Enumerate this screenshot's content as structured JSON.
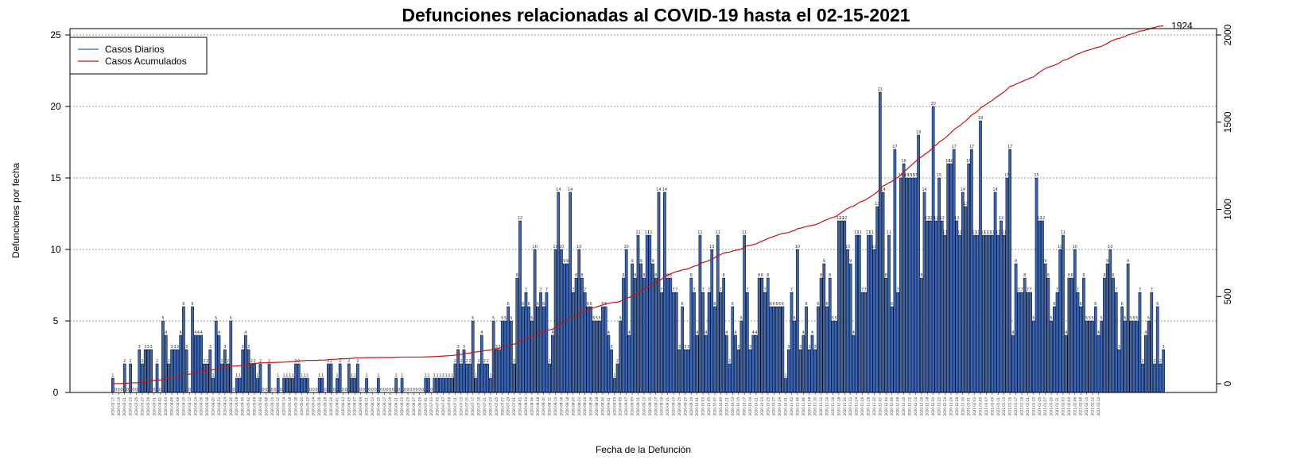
{
  "chart_data": {
    "type": "bar",
    "title": "Defunciones relacionadas al COVID-19 hasta el 02-15-2021",
    "xlabel": "Fecha de la Defunción",
    "ylabel": "Defunciones por fecha",
    "ylim": [
      0,
      25
    ],
    "y2lim": [
      -50,
      2000
    ],
    "yticks": [
      0,
      5,
      10,
      15,
      20,
      25
    ],
    "y2ticks": [
      0,
      500,
      1000,
      1500,
      2000
    ],
    "grid": "horizontal dotted",
    "legend_position": "top-left",
    "colors": {
      "bars": "#3a65b5",
      "bar_border": "#000000",
      "line": "#cc1111",
      "grid": "#999999"
    },
    "series": [
      {
        "name": "Casos Diarios",
        "type": "bar",
        "values": [
          1,
          0,
          0,
          0,
          2,
          0,
          2,
          0,
          0,
          3,
          2,
          3,
          3,
          3,
          0,
          2,
          0,
          5,
          4,
          2,
          3,
          3,
          3,
          4,
          6,
          3,
          0,
          6,
          4,
          4,
          4,
          2,
          2,
          3,
          1,
          5,
          4,
          2,
          3,
          2,
          5,
          0,
          1,
          1,
          3,
          4,
          3,
          2,
          2,
          1,
          2,
          0,
          0,
          2,
          0,
          0,
          1,
          0,
          1,
          1,
          1,
          1,
          2,
          2,
          1,
          1,
          1,
          0,
          0,
          0,
          1,
          1,
          0,
          2,
          2,
          0,
          1,
          2,
          0,
          0,
          2,
          1,
          1,
          2,
          0,
          0,
          1,
          0,
          0,
          0,
          1,
          0,
          0,
          0,
          0,
          0,
          1,
          0,
          1,
          0,
          0,
          0,
          0,
          0,
          0,
          0,
          1,
          1,
          0,
          1,
          1,
          1,
          1,
          1,
          1,
          1,
          2,
          3,
          2,
          3,
          2,
          2,
          5,
          1,
          2,
          4,
          2,
          2,
          1,
          5,
          3,
          3,
          5,
          5,
          6,
          5,
          2,
          8,
          12,
          6,
          7,
          6,
          5,
          10,
          6,
          7,
          6,
          7,
          2,
          4,
          10,
          14,
          10,
          9,
          9,
          14,
          7,
          8,
          10,
          8,
          7,
          6,
          6,
          5,
          5,
          5,
          6,
          6,
          4,
          3,
          1,
          2,
          5,
          8,
          10,
          4,
          9,
          8,
          11,
          9,
          8,
          11,
          11,
          9,
          8,
          14,
          7,
          14,
          8,
          8,
          7,
          7,
          3,
          6,
          3,
          3,
          8,
          7,
          4,
          11,
          7,
          4,
          7,
          10,
          6,
          11,
          7,
          8,
          4,
          2,
          6,
          4,
          3,
          5,
          11,
          7,
          3,
          4,
          4,
          8,
          8,
          7,
          8,
          6,
          6,
          6,
          6,
          6,
          1,
          3,
          7,
          5,
          10,
          3,
          4,
          6,
          3,
          4,
          3,
          6,
          8,
          9,
          6,
          8,
          5,
          5,
          12,
          12,
          12,
          10,
          9,
          4,
          11,
          11,
          7,
          7,
          11,
          11,
          10,
          13,
          21,
          14,
          8,
          11,
          6,
          17,
          7,
          15,
          16,
          15,
          15,
          15,
          15,
          18,
          8,
          14,
          12,
          12,
          20,
          12,
          15,
          12,
          11,
          16,
          16,
          17,
          12,
          11,
          14,
          13,
          16,
          17,
          11,
          11,
          19,
          11,
          11,
          11,
          11,
          14,
          11,
          12,
          11,
          15,
          17,
          4,
          9,
          7,
          7,
          8,
          7,
          7,
          5,
          15,
          12,
          12,
          9,
          8,
          5,
          6,
          7,
          10,
          11,
          4,
          8,
          8,
          10,
          7,
          6,
          8,
          5,
          5,
          5,
          6,
          4,
          5,
          8,
          9,
          10,
          8,
          7,
          3,
          6,
          5,
          9,
          5,
          5,
          5,
          7,
          2,
          4,
          5,
          7,
          2,
          6,
          2,
          3
        ]
      },
      {
        "name": "Casos Acumulados",
        "type": "line",
        "axis": "right",
        "end_label": "1924"
      }
    ],
    "date_labels": [
      "2020-03-17",
      "2020-03-19",
      "2020-03-21",
      "2020-03-23",
      "2020-03-25",
      "2020-03-27",
      "2020-03-29",
      "2020-03-31",
      "2020-04-02",
      "2020-04-04",
      "2020-04-06",
      "2020-04-08",
      "2020-04-10",
      "2020-04-12",
      "2020-04-14",
      "2020-04-16",
      "2020-04-18",
      "2020-04-20",
      "2020-04-22",
      "2020-04-24",
      "2020-04-26",
      "2020-04-28",
      "2020-04-30",
      "2020-05-02",
      "2020-05-04",
      "2020-05-06",
      "2020-05-08",
      "2020-05-10",
      "2020-05-12",
      "2020-05-14",
      "2020-05-16",
      "2020-05-18",
      "2020-05-20",
      "2020-05-22",
      "2020-05-24",
      "2020-05-26",
      "2020-05-28",
      "2020-05-30",
      "2020-06-01",
      "2020-06-03",
      "2020-06-05",
      "2020-06-07",
      "2020-06-09",
      "2020-06-11",
      "2020-06-13",
      "2020-06-15",
      "2020-06-17",
      "2020-06-19",
      "2020-06-21",
      "2020-06-23",
      "2020-06-25",
      "2020-06-27",
      "2020-06-29",
      "2020-07-01",
      "2020-07-03",
      "2020-07-05",
      "2020-07-07",
      "2020-07-09",
      "2020-07-11",
      "2020-07-13",
      "2020-07-15",
      "2020-07-17",
      "2020-07-19",
      "2020-07-21",
      "2020-07-23",
      "2020-07-25",
      "2020-07-27",
      "2020-07-29",
      "2020-07-31",
      "2020-08-02",
      "2020-08-04",
      "2020-08-06",
      "2020-08-08",
      "2020-08-10",
      "2020-08-12",
      "2020-08-14",
      "2020-08-16",
      "2020-08-18",
      "2020-08-20",
      "2020-08-22",
      "2020-08-24",
      "2020-08-26",
      "2020-08-28",
      "2020-08-30",
      "2020-09-01",
      "2020-09-03",
      "2020-09-05",
      "2020-09-07",
      "2020-09-09",
      "2020-09-11",
      "2020-09-13",
      "2020-09-15",
      "2020-09-17",
      "2020-09-19",
      "2020-09-21",
      "2020-09-23",
      "2020-09-25",
      "2020-09-27",
      "2020-09-29",
      "2020-10-01",
      "2020-10-03",
      "2020-10-05",
      "2020-10-07",
      "2020-10-09",
      "2020-10-11",
      "2020-10-13",
      "2020-10-15",
      "2020-10-17",
      "2020-10-19",
      "2020-10-21",
      "2020-10-23",
      "2020-10-25",
      "2020-10-27",
      "2020-10-29",
      "2020-10-31",
      "2020-11-02",
      "2020-11-04",
      "2020-11-06",
      "2020-11-08",
      "2020-11-10",
      "2020-11-12",
      "2020-11-14",
      "2020-11-16",
      "2020-11-18",
      "2020-11-20",
      "2020-11-22",
      "2020-11-24",
      "2020-11-26",
      "2020-11-28",
      "2020-11-30",
      "2020-12-02",
      "2020-12-04",
      "2020-12-06",
      "2020-12-08",
      "2020-12-10",
      "2020-12-12",
      "2020-12-14",
      "2020-12-16",
      "2020-12-18",
      "2020-12-20",
      "2020-12-22",
      "2020-12-24",
      "2020-12-26",
      "2020-12-28",
      "2020-12-30",
      "2021-01-01",
      "2021-01-03",
      "2021-01-05",
      "2021-01-07",
      "2021-01-09",
      "2021-01-11",
      "2021-01-13",
      "2021-01-15",
      "2021-01-17",
      "2021-01-19",
      "2021-01-21",
      "2021-01-23",
      "2021-01-25",
      "2021-01-27",
      "2021-01-29",
      "2021-01-31",
      "2021-02-02",
      "2021-02-04",
      "2021-02-06",
      "2021-02-08",
      "2021-02-10",
      "2021-02-12",
      "2021-02-14"
    ]
  }
}
